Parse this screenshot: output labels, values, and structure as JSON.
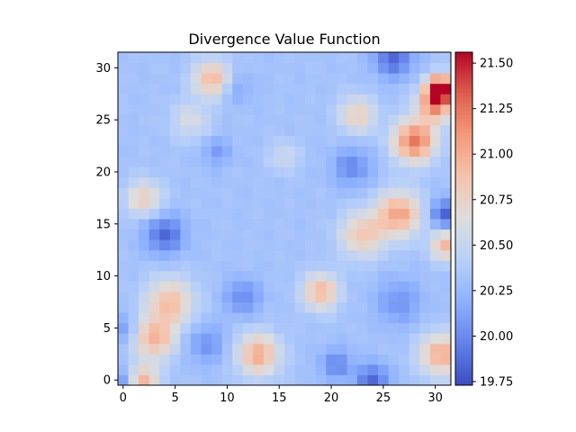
{
  "chart_data": {
    "type": "heatmap",
    "title": "Divergence Value Function",
    "xlabel": "",
    "ylabel": "",
    "grid": false,
    "origin": "lower",
    "colormap": "coolwarm",
    "rows": 32,
    "cols": 32,
    "xlim": [
      -0.5,
      31.5
    ],
    "ylim": [
      -0.5,
      31.5
    ],
    "x_ticks": [
      0,
      5,
      10,
      15,
      20,
      25,
      30
    ],
    "y_ticks": [
      0,
      5,
      10,
      15,
      20,
      25,
      30
    ],
    "colorbar": {
      "min": 19.73,
      "max": 21.56,
      "ticks": [
        19.75,
        20.0,
        20.25,
        20.5,
        20.75,
        21.0,
        21.25,
        21.5
      ],
      "tick_labels": [
        "19.75",
        "20.00",
        "20.25",
        "20.50",
        "20.75",
        "21.00",
        "21.25",
        "21.50"
      ]
    },
    "base_value": 20.32,
    "features": [
      {
        "x": 30.5,
        "y": 28.0,
        "value": 21.55,
        "sigma": 0.9
      },
      {
        "x": 30.0,
        "y": 26.5,
        "value": 21.1,
        "sigma": 1.2
      },
      {
        "x": 28.0,
        "y": 23.0,
        "value": 21.25,
        "sigma": 1.4
      },
      {
        "x": 26.5,
        "y": 16.0,
        "value": 21.05,
        "sigma": 1.5
      },
      {
        "x": 23.0,
        "y": 14.0,
        "value": 20.85,
        "sigma": 1.5
      },
      {
        "x": 31.0,
        "y": 13.0,
        "value": 20.95,
        "sigma": 1.0
      },
      {
        "x": 30.5,
        "y": 2.5,
        "value": 21.0,
        "sigma": 1.4
      },
      {
        "x": 13.0,
        "y": 2.5,
        "value": 21.0,
        "sigma": 1.4
      },
      {
        "x": 3.0,
        "y": 4.0,
        "value": 20.95,
        "sigma": 1.4
      },
      {
        "x": 4.5,
        "y": 7.5,
        "value": 20.9,
        "sigma": 1.6
      },
      {
        "x": 19.0,
        "y": 8.5,
        "value": 20.95,
        "sigma": 1.2
      },
      {
        "x": 2.0,
        "y": 0.0,
        "value": 20.95,
        "sigma": 1.0
      },
      {
        "x": 8.5,
        "y": 29.0,
        "value": 20.95,
        "sigma": 1.2
      },
      {
        "x": 22.5,
        "y": 25.5,
        "value": 20.8,
        "sigma": 1.2
      },
      {
        "x": 2.0,
        "y": 17.5,
        "value": 20.8,
        "sigma": 1.2
      },
      {
        "x": 15.5,
        "y": 21.5,
        "value": 20.55,
        "sigma": 1.0
      },
      {
        "x": 6.5,
        "y": 25.0,
        "value": 20.6,
        "sigma": 1.3
      },
      {
        "x": 26.0,
        "y": 31.0,
        "value": 19.85,
        "sigma": 1.3
      },
      {
        "x": 4.0,
        "y": 14.0,
        "value": 19.85,
        "sigma": 1.3
      },
      {
        "x": 31.0,
        "y": 16.0,
        "value": 19.8,
        "sigma": 1.0
      },
      {
        "x": 24.0,
        "y": 0.0,
        "value": 19.85,
        "sigma": 1.1
      },
      {
        "x": 11.5,
        "y": 8.0,
        "value": 20.0,
        "sigma": 1.2
      },
      {
        "x": 22.0,
        "y": 20.5,
        "value": 20.0,
        "sigma": 1.3
      },
      {
        "x": 26.5,
        "y": 7.5,
        "value": 20.05,
        "sigma": 1.5
      },
      {
        "x": 8.0,
        "y": 3.5,
        "value": 20.05,
        "sigma": 1.3
      },
      {
        "x": 20.5,
        "y": 1.5,
        "value": 20.0,
        "sigma": 1.1
      },
      {
        "x": 9.0,
        "y": 22.0,
        "value": 20.1,
        "sigma": 1.0
      },
      {
        "x": 0.0,
        "y": 5.0,
        "value": 20.1,
        "sigma": 1.0
      },
      {
        "x": 0.0,
        "y": 0.0,
        "value": 20.05,
        "sigma": 0.8
      },
      {
        "x": 11.0,
        "y": 28.0,
        "value": 20.15,
        "sigma": 1.0
      }
    ]
  }
}
